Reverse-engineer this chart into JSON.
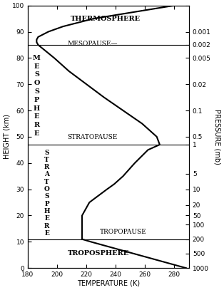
{
  "xlabel": "TEMPERATURE (K)",
  "ylabel": "HEIGHT (km)",
  "ylabel_right": "PRESSURE (mb)",
  "xlim": [
    180,
    290
  ],
  "ylim": [
    0,
    100
  ],
  "xticks": [
    180,
    200,
    220,
    240,
    260,
    280
  ],
  "yticks": [
    0,
    10,
    20,
    30,
    40,
    50,
    60,
    70,
    80,
    90,
    100
  ],
  "heights": [
    0,
    2,
    4,
    6,
    8,
    10,
    11,
    12,
    15,
    20,
    25,
    30,
    32,
    35,
    40,
    45,
    47,
    50,
    55,
    60,
    65,
    70,
    75,
    80,
    85,
    86,
    87,
    88,
    90,
    92,
    95,
    100
  ],
  "temps": [
    288,
    275,
    262,
    249,
    236,
    223,
    217,
    217,
    217,
    217,
    222,
    234,
    239,
    245,
    253,
    262,
    270,
    268,
    258,
    245,
    232,
    220,
    208,
    198,
    187,
    186,
    186,
    187,
    194,
    204,
    225,
    280
  ],
  "pause_lines_km": [
    11,
    47,
    85
  ],
  "pressure_ticks_km": [
    0,
    5.5,
    11,
    16.5,
    20,
    24,
    30,
    36,
    47,
    50,
    60,
    70,
    80,
    85,
    90,
    100
  ],
  "pressure_labels_str": [
    "1000",
    "500",
    "200",
    "100",
    "50",
    "20",
    "10",
    "5",
    "1",
    "0.5",
    "0.1",
    "0.02",
    "0.005",
    "0.002",
    "0.001",
    ""
  ],
  "line_color": "#000000",
  "line_width": 1.5,
  "fontsize_axis": 6.5,
  "fontsize_labels": 7,
  "fontsize_layer": 7,
  "fontsize_pause": 6.5
}
